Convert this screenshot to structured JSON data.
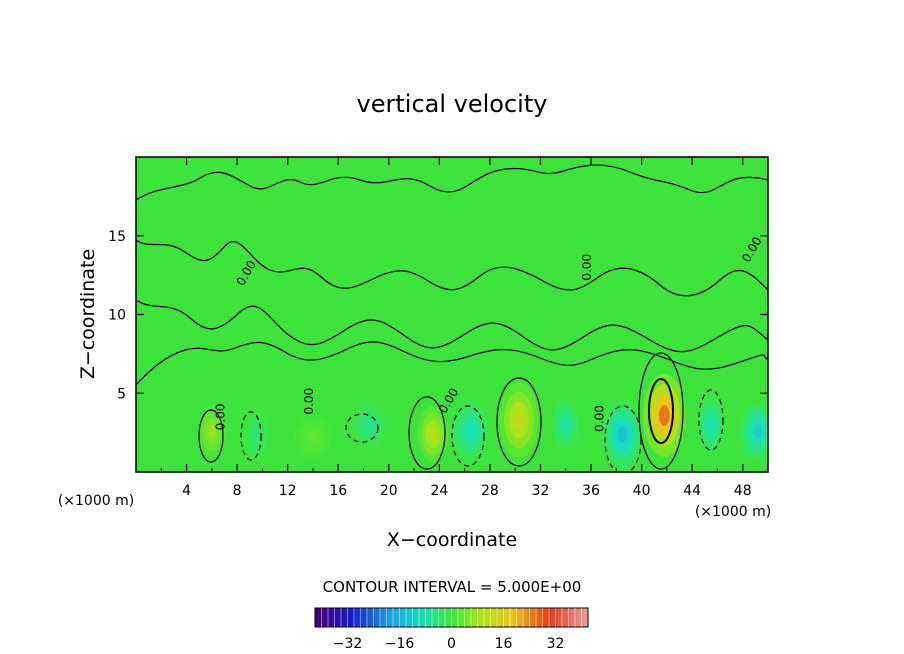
{
  "chart_data": {
    "type": "heatmap",
    "title": "vertical velocity",
    "xlabel": "X−coordinate",
    "ylabel": "Z−coordinate",
    "x_unit": "(×1000 m)",
    "z_unit": "(×1000 m)",
    "xlim": [
      0,
      50
    ],
    "ylim": [
      0,
      20
    ],
    "x_ticks": [
      4,
      8,
      12,
      16,
      20,
      24,
      28,
      32,
      36,
      40,
      44,
      48
    ],
    "x_tick_labels": [
      "4",
      "8",
      "12",
      "16",
      "20",
      "24",
      "28",
      "32",
      "36",
      "40",
      "44",
      "48"
    ],
    "y_ticks": [
      5,
      10,
      15
    ],
    "y_tick_labels": [
      "5",
      "10",
      "15"
    ],
    "contour_interval_text": "CONTOUR INTERVAL = 5.000E+00",
    "contour_labels": [
      "0.00"
    ],
    "colorbar": {
      "min": -42,
      "max": 42,
      "ticks": [
        -32,
        -16,
        0,
        16,
        32
      ],
      "tick_labels": [
        "−32",
        "−16",
        "0",
        "16",
        "32"
      ]
    },
    "features": [
      {
        "x": 6,
        "z": 2.6,
        "value": 8,
        "sx": 0.9,
        "sz": 1.4
      },
      {
        "x": 9.5,
        "z": 2.4,
        "value": -4,
        "sx": 0.8,
        "sz": 1.3
      },
      {
        "x": 14,
        "z": 2.2,
        "value": 3,
        "sx": 1.2,
        "sz": 1.2
      },
      {
        "x": 18.5,
        "z": 3.0,
        "value": -6,
        "sx": 1.1,
        "sz": 1.2
      },
      {
        "x": 23.5,
        "z": 2.4,
        "value": 12,
        "sx": 1.0,
        "sz": 1.5
      },
      {
        "x": 26.5,
        "z": 2.6,
        "value": -10,
        "sx": 1.2,
        "sz": 1.5
      },
      {
        "x": 30.3,
        "z": 3.3,
        "value": 14,
        "sx": 1.3,
        "sz": 2.0
      },
      {
        "x": 34,
        "z": 3.0,
        "value": -8,
        "sx": 0.9,
        "sz": 1.3
      },
      {
        "x": 38.5,
        "z": 2.4,
        "value": -14,
        "sx": 1.3,
        "sz": 1.8
      },
      {
        "x": 41.8,
        "z": 3.6,
        "value": 28,
        "sx": 1.4,
        "sz": 2.2
      },
      {
        "x": 45.5,
        "z": 3.0,
        "value": -9,
        "sx": 0.9,
        "sz": 1.5
      },
      {
        "x": 49.2,
        "z": 2.6,
        "value": -12,
        "sx": 1.2,
        "sz": 1.5
      }
    ]
  }
}
